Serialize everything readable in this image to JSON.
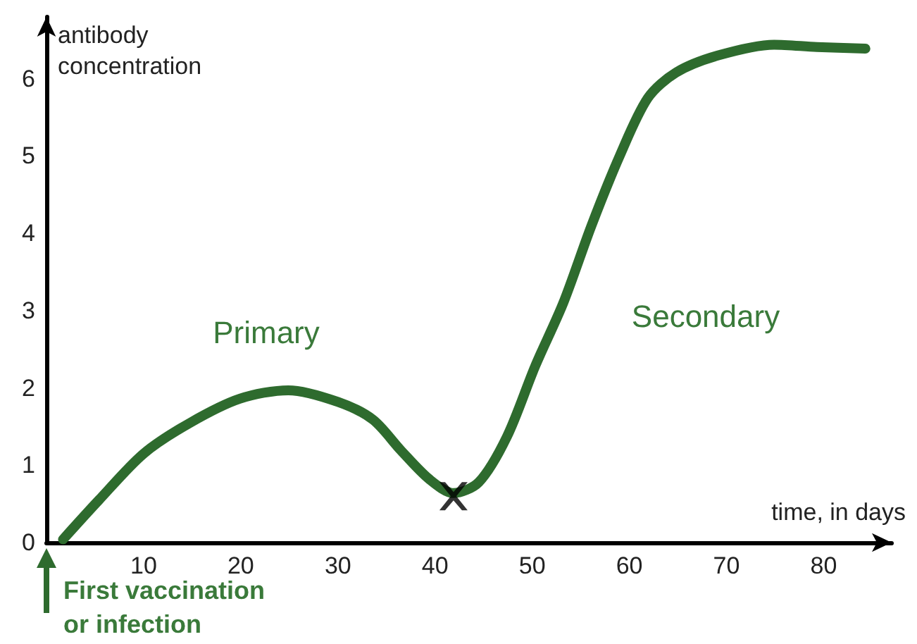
{
  "chart_data": {
    "type": "line",
    "ylabel": "antibody concentration",
    "xlabel": "time, in days",
    "xlim": [
      0,
      87
    ],
    "ylim": [
      0,
      6.8
    ],
    "xticks": [
      10,
      20,
      30,
      40,
      50,
      60,
      70,
      80
    ],
    "yticks": [
      0,
      1,
      2,
      3,
      4,
      5,
      6
    ],
    "grid": false,
    "marker": "none",
    "series": [
      {
        "color": "#2e6b2e",
        "x": [
          1.7,
          5.4,
          10,
          14.8,
          19.9,
          24.9,
          30,
          33.6,
          36.5,
          39.4,
          41.9,
          44.5,
          47.4,
          50.3,
          53.2,
          56.1,
          59,
          61.9,
          64.8,
          69.1,
          74.9,
          79.3,
          84.3
        ],
        "values": [
          0.04,
          0.55,
          1.15,
          1.55,
          1.86,
          1.97,
          1.82,
          1.59,
          1.19,
          0.82,
          0.64,
          0.78,
          1.37,
          2.28,
          3.1,
          4.1,
          5.0,
          5.75,
          6.08,
          6.3,
          6.44,
          6.41,
          6.39
        ]
      },
      {
        "type": "scatter",
        "marker": "cross",
        "color": "#000000",
        "x": [
          41.9
        ],
        "values": [
          0.6
        ]
      }
    ],
    "annotations": [
      "Primary",
      "Secondary",
      "First vaccination or infection"
    ]
  }
}
